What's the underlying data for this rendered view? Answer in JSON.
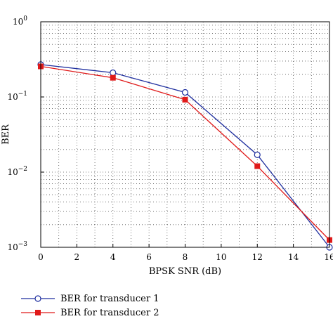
{
  "chart_data": {
    "type": "line",
    "title": "",
    "xlabel": "BPSK SNR (dB)",
    "ylabel": "BER",
    "xlim": [
      0,
      16
    ],
    "ylim": [
      0.001,
      1
    ],
    "yscale": "log",
    "grid": true,
    "legend_position": "bottom",
    "x_ticks": [
      "0",
      "2",
      "4",
      "6",
      "8",
      "10",
      "12",
      "14",
      "16"
    ],
    "y_ticks": [
      {
        "base": "10",
        "exp": "0"
      },
      {
        "base": "10",
        "exp": "−1"
      },
      {
        "base": "10",
        "exp": "−2"
      },
      {
        "base": "10",
        "exp": "−3"
      }
    ],
    "series": [
      {
        "name": "BER for transducer 1",
        "color": "#1f2f9f",
        "marker": "circle",
        "x": [
          0,
          4,
          8,
          12,
          16
        ],
        "y": [
          0.27,
          0.21,
          0.115,
          0.017,
          0.001
        ]
      },
      {
        "name": "BER for transducer 2",
        "color": "#e01a1a",
        "marker": "square",
        "x": [
          0,
          4,
          8,
          12,
          16
        ],
        "y": [
          0.255,
          0.18,
          0.092,
          0.012,
          0.00125
        ]
      }
    ]
  }
}
